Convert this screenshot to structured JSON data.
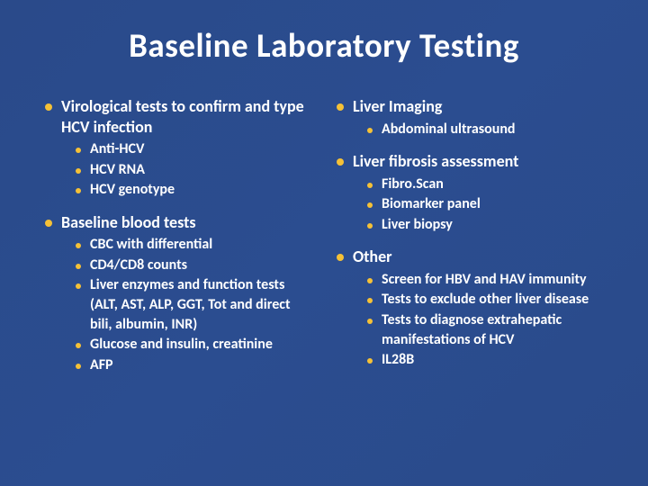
{
  "colors": {
    "background_start": "#2a4a8a",
    "background_end": "#2a4a8a",
    "text": "#ffffff",
    "bullet": "#f5c137"
  },
  "typography": {
    "title_fontsize": 37,
    "title_weight": 700,
    "section_fontsize": 18,
    "section_weight": 700,
    "item_fontsize": 16,
    "item_weight": 600,
    "font_family": "Calibri"
  },
  "title": "Baseline Laboratory Testing",
  "left": [
    {
      "heading": "Virological tests to confirm and type HCV infection",
      "items": [
        "Anti-HCV",
        "HCV RNA",
        "HCV genotype"
      ]
    },
    {
      "heading": "Baseline blood tests",
      "items": [
        "CBC with differential",
        "CD4/CD8 counts",
        "Liver enzymes and function tests (ALT, AST, ALP, GGT, Tot and direct bili, albumin, INR)",
        "Glucose and insulin, creatinine",
        "AFP"
      ]
    }
  ],
  "right": [
    {
      "heading": "Liver Imaging",
      "items": [
        "Abdominal ultrasound"
      ]
    },
    {
      "heading": "Liver fibrosis assessment",
      "items": [
        "Fibro.Scan",
        "Biomarker panel",
        "Liver biopsy"
      ]
    },
    {
      "heading": "Other",
      "items": [
        "Screen for HBV and HAV immunity",
        "Tests to exclude other liver disease",
        "Tests to diagnose extrahepatic manifestations of HCV",
        "IL28B"
      ]
    }
  ]
}
